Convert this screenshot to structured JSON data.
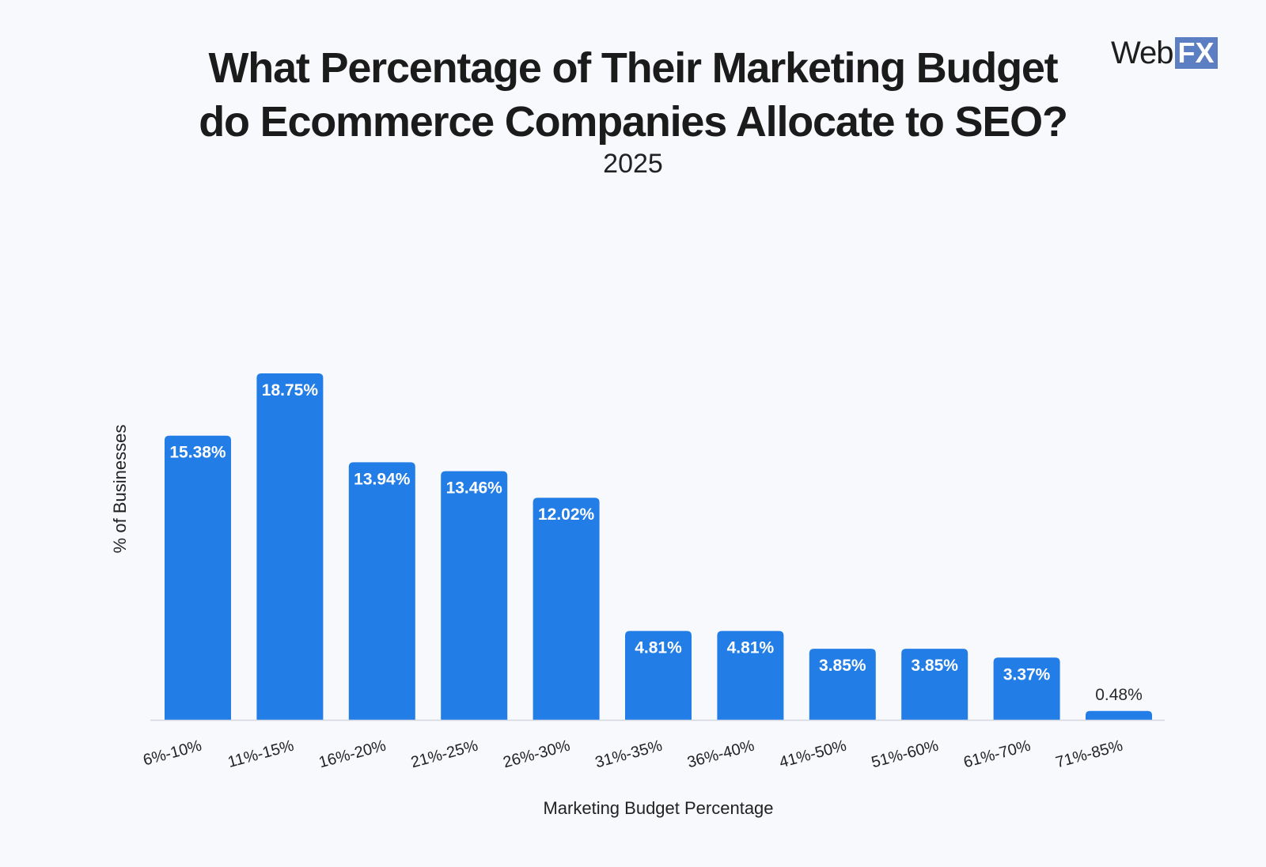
{
  "header": {
    "title_line1": "What Percentage of Their Marketing Budget",
    "title_line2": "do Ecommerce Companies Allocate to SEO?",
    "subtitle": "2025"
  },
  "logo": {
    "text_web": "Web",
    "text_fx": "FX"
  },
  "colors": {
    "bar": "#237de6",
    "background": "#f7f9fd",
    "logo_fx": "#5b7fc2"
  },
  "chart_data": {
    "type": "bar",
    "title": "What Percentage of Their Marketing Budget do Ecommerce Companies Allocate to SEO?",
    "subtitle": "2025",
    "xlabel": "Marketing Budget Percentage",
    "ylabel": "% of Businesses",
    "categories": [
      "6%-10%",
      "11%-15%",
      "16%-20%",
      "21%-25%",
      "26%-30%",
      "31%-35%",
      "36%-40%",
      "41%-50%",
      "51%-60%",
      "61%-70%",
      "71%-85%"
    ],
    "values": [
      15.38,
      18.75,
      13.94,
      13.46,
      12.02,
      4.81,
      4.81,
      3.85,
      3.85,
      3.37,
      0.48
    ],
    "value_labels": [
      "15.38%",
      "18.75%",
      "13.94%",
      "13.46%",
      "12.02%",
      "4.81%",
      "4.81%",
      "3.85%",
      "3.85%",
      "3.37%",
      "0.48%"
    ],
    "ylim": [
      0,
      20
    ],
    "grid": false,
    "legend": "none"
  }
}
